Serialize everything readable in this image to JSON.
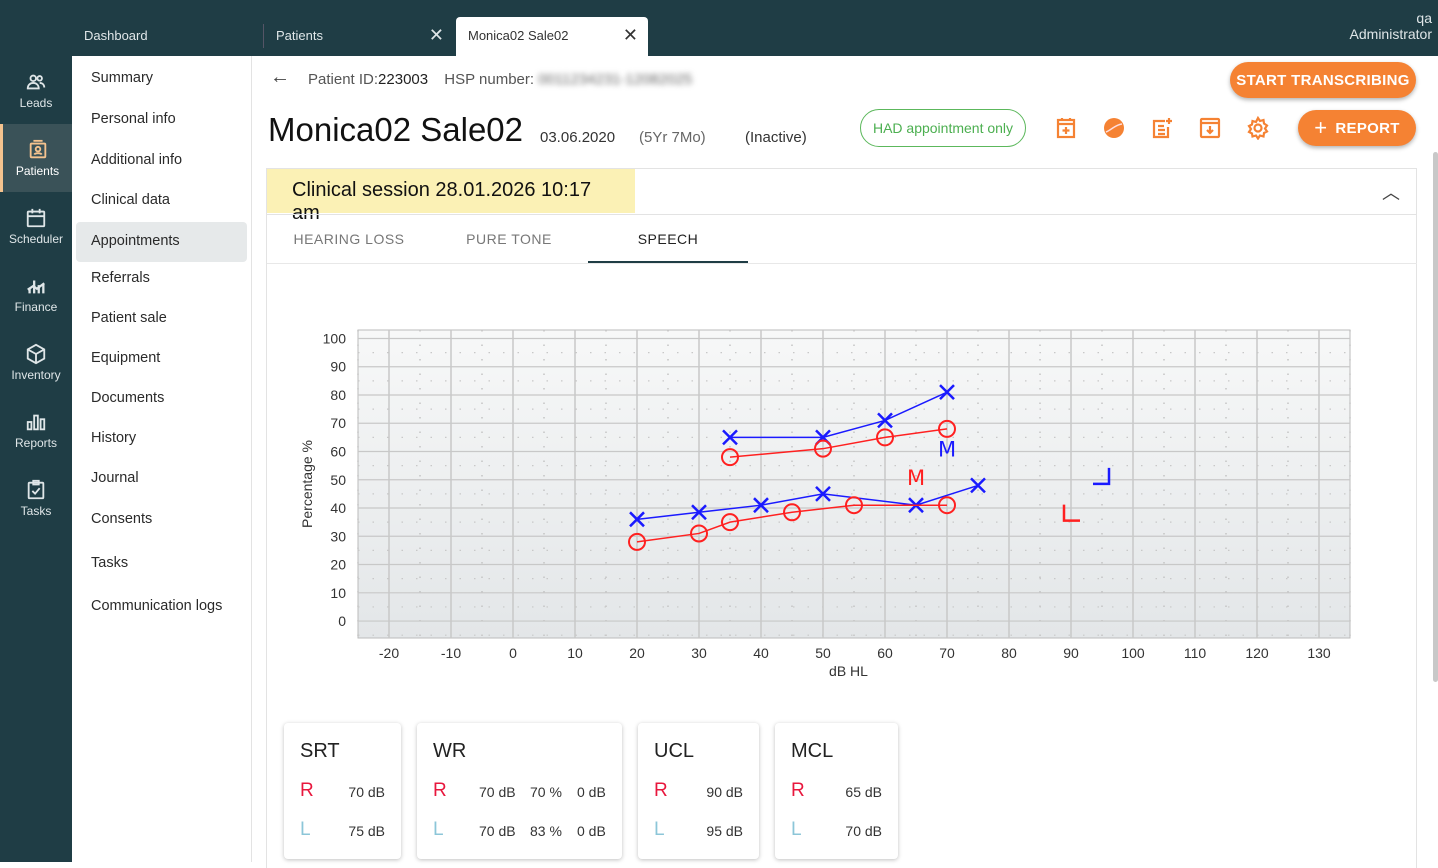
{
  "tabs": [
    {
      "label": "Dashboard"
    },
    {
      "label": "Patients"
    },
    {
      "label": "Monica02 Sale02"
    }
  ],
  "user": {
    "name": "qa",
    "role": "Administrator"
  },
  "rail": [
    {
      "label": "Leads",
      "icon": "people-icon"
    },
    {
      "label": "Patients",
      "icon": "patient-card-icon"
    },
    {
      "label": "Scheduler",
      "icon": "calendar-icon"
    },
    {
      "label": "Finance",
      "icon": "finance-chart-icon"
    },
    {
      "label": "Inventory",
      "icon": "box-icon"
    },
    {
      "label": "Reports",
      "icon": "bar-chart-icon"
    },
    {
      "label": "Tasks",
      "icon": "clipboard-check-icon"
    }
  ],
  "subnav": [
    "Summary",
    "Personal info",
    "Additional info",
    "Clinical data",
    "Appointments",
    "Referrals",
    "Patient sale",
    "Equipment",
    "Documents",
    "History",
    "Journal",
    "Consents",
    "Tasks",
    "Communication logs"
  ],
  "patient": {
    "id_label": "Patient ID:",
    "id": "223003",
    "hsp_label": "HSP number:",
    "hsp": "0011234231-12082025",
    "name": "Monica02 Sale02",
    "dob": "03.06.2020",
    "age": "(5Yr 7Mo)",
    "status": "(Inactive)",
    "badge": "HAD appointment only"
  },
  "buttons": {
    "transcribe": "START TRANSCRIBING",
    "report": "REPORT"
  },
  "session": {
    "title": "Clinical session 28.01.2026 10:17 am"
  },
  "test_tabs": [
    {
      "label": "HEARING LOSS"
    },
    {
      "label": "PURE TONE"
    },
    {
      "label": "SPEECH"
    }
  ],
  "colors": {
    "accent": "#f58233",
    "right": "#ff2020",
    "left": "#1a1aff",
    "brand": "#1f3d45"
  },
  "chart_data": {
    "type": "scatter",
    "xlabel": "dB HL",
    "ylabel": "Percentage %",
    "xlim": [
      -25,
      135
    ],
    "ylim": [
      -6,
      103
    ],
    "xticks": [
      -20,
      -10,
      0,
      10,
      20,
      30,
      40,
      50,
      60,
      70,
      80,
      90,
      100,
      110,
      120,
      130
    ],
    "yticks": [
      0,
      10,
      20,
      30,
      40,
      50,
      60,
      70,
      80,
      90,
      100
    ],
    "series": [
      {
        "name": "Left upper",
        "ear": "left",
        "marker": "x",
        "points": [
          [
            35,
            65
          ],
          [
            50,
            65
          ],
          [
            60,
            71
          ],
          [
            70,
            81
          ]
        ]
      },
      {
        "name": "Right upper",
        "ear": "right",
        "marker": "o",
        "points": [
          [
            35,
            58
          ],
          [
            50,
            61
          ],
          [
            60,
            65
          ],
          [
            70,
            68
          ]
        ]
      },
      {
        "name": "Left lower",
        "ear": "left",
        "marker": "x",
        "points": [
          [
            20,
            36
          ],
          [
            30,
            38.5
          ],
          [
            40,
            41
          ],
          [
            50,
            45
          ],
          [
            65,
            41
          ],
          [
            75,
            48
          ]
        ]
      },
      {
        "name": "Right lower",
        "ear": "right",
        "marker": "o",
        "points": [
          [
            20,
            28
          ],
          [
            30,
            31
          ],
          [
            35,
            35
          ],
          [
            45,
            38.5
          ],
          [
            55,
            41
          ],
          [
            70,
            41
          ]
        ]
      }
    ],
    "annotations": [
      {
        "text": "M",
        "ear": "left",
        "x": 70,
        "y": 61
      },
      {
        "text": "M",
        "ear": "right",
        "x": 65,
        "y": 51
      },
      {
        "text": "UCL",
        "ear": "left",
        "symbol": "bracket-right",
        "x": 95,
        "y": 51
      },
      {
        "text": "UCL",
        "ear": "right",
        "symbol": "bracket-left",
        "x": 90,
        "y": 38
      }
    ]
  },
  "cards": [
    {
      "title": "SRT",
      "r": [
        "70 dB"
      ],
      "l": [
        "75 dB"
      ]
    },
    {
      "title": "WR",
      "r": [
        "70 dB",
        "70 %",
        "0 dB"
      ],
      "l": [
        "70 dB",
        "83 %",
        "0 dB"
      ]
    },
    {
      "title": "UCL",
      "r": [
        "90 dB"
      ],
      "l": [
        "95 dB"
      ]
    },
    {
      "title": "MCL",
      "r": [
        "65 dB"
      ],
      "l": [
        "70 dB"
      ]
    }
  ],
  "ear_labels": {
    "r": "R",
    "l": "L"
  }
}
